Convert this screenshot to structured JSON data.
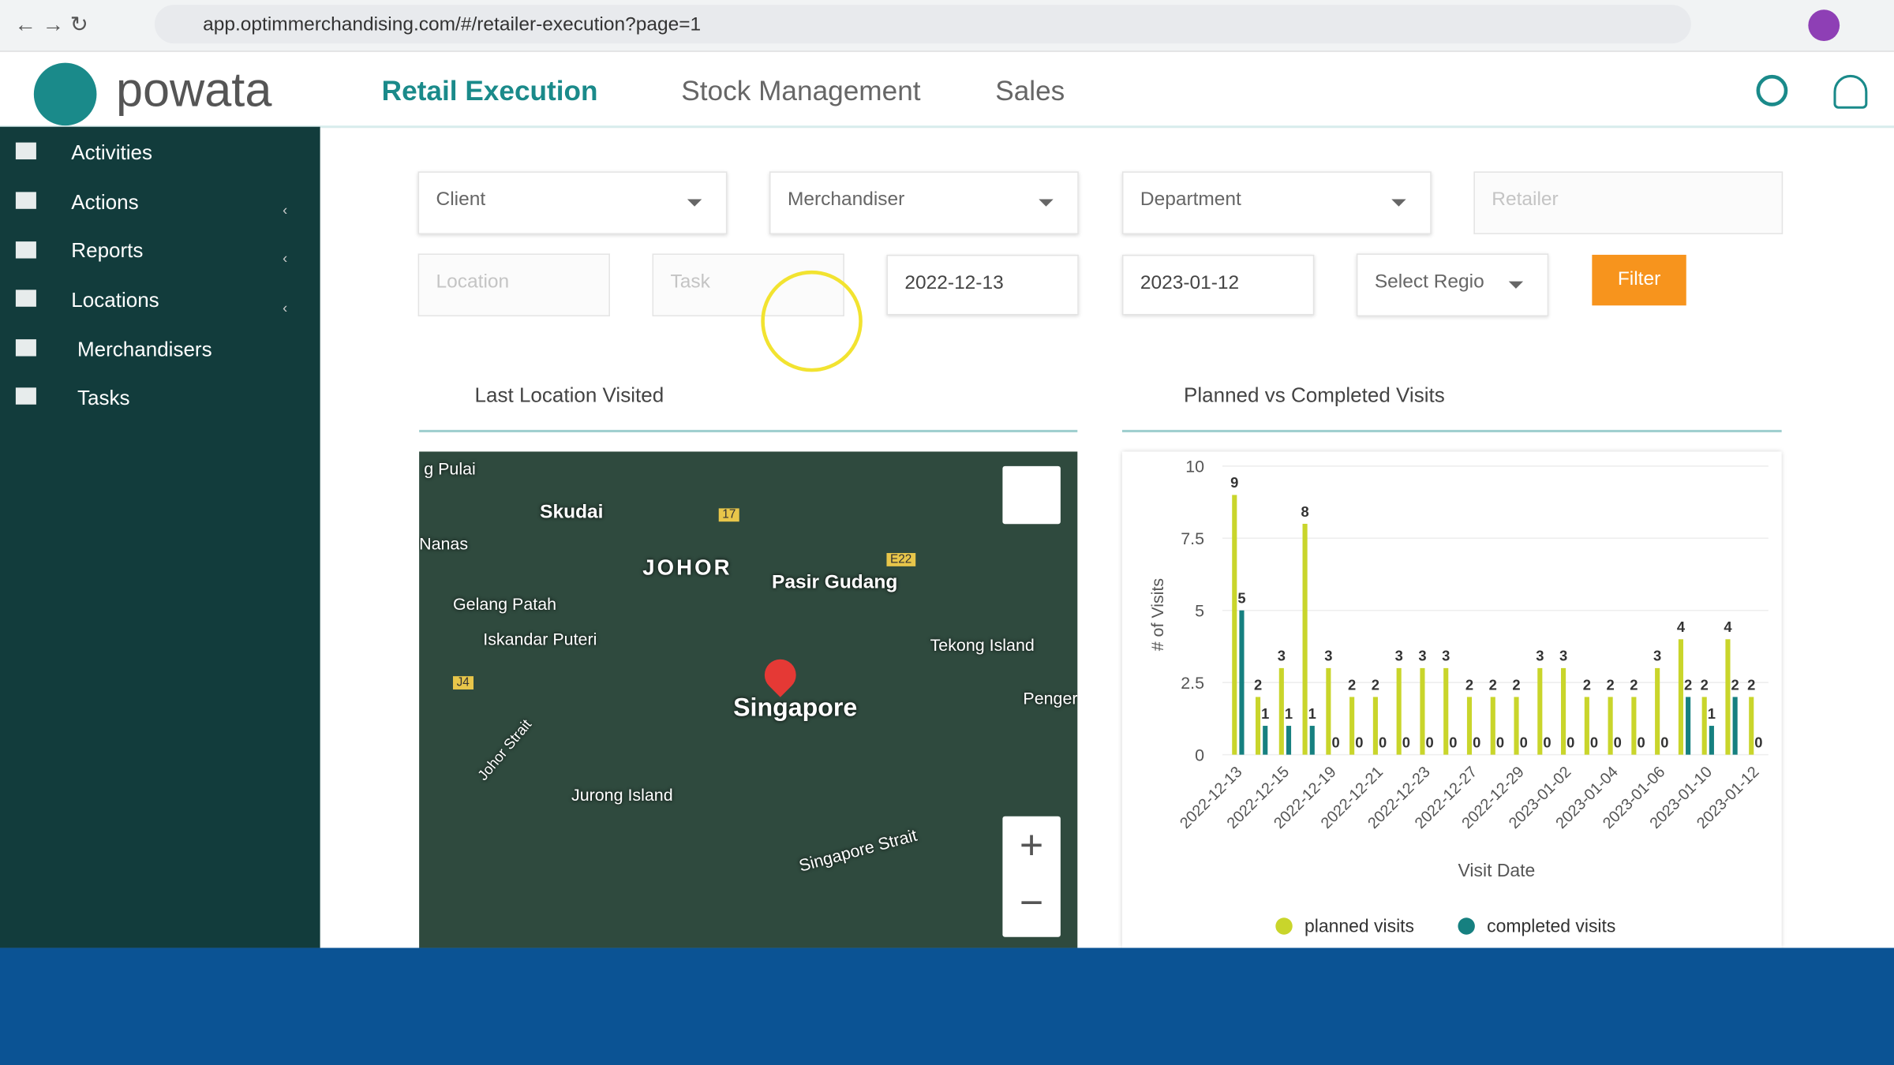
{
  "browser": {
    "url": "app.optimmerchandising.com/#/retailer-execution?page=1"
  },
  "header": {
    "logo": "powata",
    "nav": [
      "Retail Execution",
      "Stock Management",
      "Sales"
    ]
  },
  "sidebar": [
    "Activities",
    "Actions",
    "Reports",
    "Locations",
    "Merchandisers",
    "Tasks"
  ],
  "filters": {
    "client": "Client",
    "merchandiser": "Merchandiser",
    "department": "Department",
    "retailer": "Retailer",
    "location": "Location",
    "task": "Task",
    "start_date": "2022-12-13",
    "end_date": "2023-01-12",
    "region": "Select Regio",
    "button": "Filter"
  },
  "map_panel": {
    "title": "Last Location Visited",
    "labels": [
      "g Pulai",
      "Skudai",
      "Nanas",
      "JOHOR",
      "Pasir Gudang",
      "Gelang Patah",
      "Iskandar Puteri",
      "Tekong Island",
      "Singapore",
      "Penger",
      "Johor Strait",
      "Jurong Island",
      "Singapore Strait",
      "17",
      "E22",
      "J4"
    ]
  },
  "chart_panel": {
    "title": "Planned vs Completed Visits"
  },
  "chart_data": {
    "type": "bar",
    "x_label": "Visit Date",
    "y_label": "# of Visits",
    "categories": [
      "2022-12-13",
      null,
      "2022-12-15",
      null,
      "2022-12-19",
      null,
      "2022-12-21",
      null,
      "2022-12-23",
      null,
      "2022-12-27",
      null,
      "2022-12-29",
      null,
      "2023-01-02",
      null,
      "2023-01-04",
      null,
      "2023-01-06",
      null,
      "2023-01-10",
      null,
      "2023-01-12"
    ],
    "series": [
      {
        "name": "planned visits",
        "color": "#c9d52b",
        "values": [
          9,
          2,
          3,
          8,
          3,
          2,
          2,
          3,
          3,
          3,
          2,
          2,
          2,
          3,
          3,
          2,
          2,
          2,
          3,
          4,
          2,
          4,
          2
        ]
      },
      {
        "name": "completed visits",
        "color": "#168080",
        "values": [
          5,
          1,
          1,
          1,
          0,
          0,
          0,
          0,
          0,
          0,
          0,
          0,
          0,
          0,
          0,
          0,
          0,
          0,
          0,
          2,
          1,
          2,
          0
        ]
      }
    ],
    "ylim": [
      0,
      10
    ],
    "yticks": [
      0,
      2.5,
      5,
      7.5,
      10
    ],
    "grid": true,
    "legend": "bottom"
  }
}
